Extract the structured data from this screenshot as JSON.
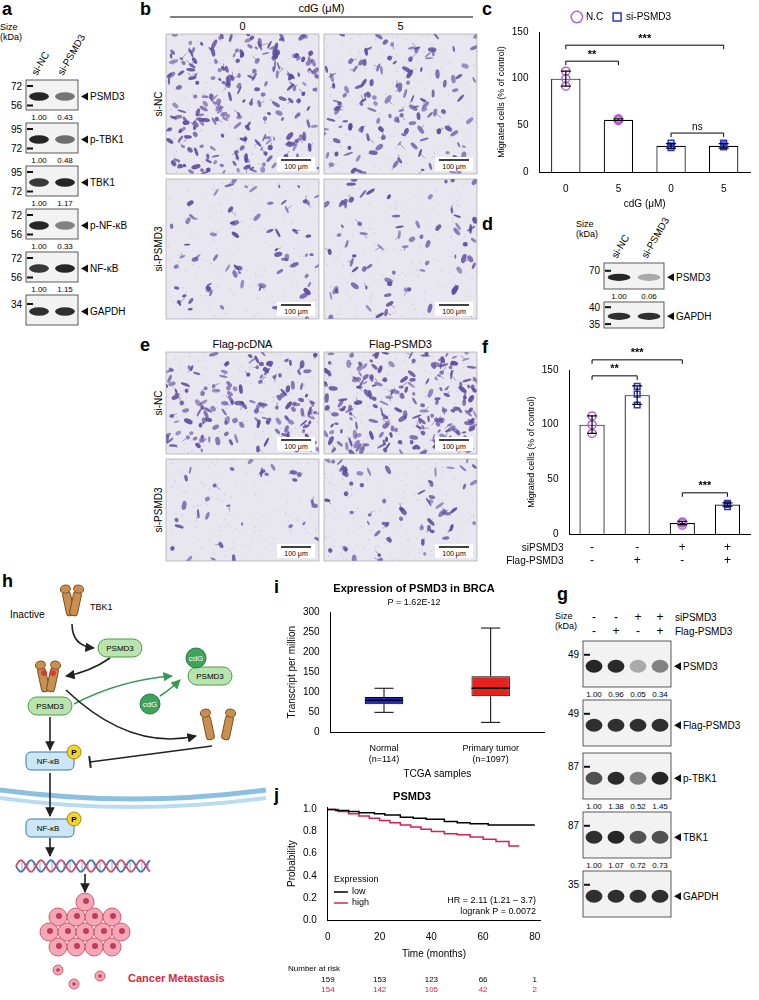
{
  "panels": {
    "a": {
      "letter": "a",
      "size_label": "Size (kDa)",
      "lanes": [
        "si-NC",
        "si-PSMD3"
      ],
      "rows": [
        {
          "name": "PSMD3",
          "markers": [
            72,
            56
          ],
          "quant": [
            "1.00",
            "0.43"
          ]
        },
        {
          "name": "p-TBK1",
          "markers": [
            95,
            72
          ],
          "quant": [
            "1.00",
            "0.48"
          ]
        },
        {
          "name": "TBK1",
          "markers": [
            95,
            72
          ],
          "quant": [
            "1.00",
            "1.17"
          ]
        },
        {
          "name": "p-NF-κB",
          "markers": [
            72,
            56
          ],
          "quant": [
            "1.00",
            "0.33"
          ]
        },
        {
          "name": "NF-κB",
          "markers": [
            72,
            56
          ],
          "quant": [
            "1.00",
            "1.15"
          ]
        },
        {
          "name": "GAPDH",
          "markers": [
            34
          ]
        }
      ]
    },
    "b": {
      "letter": "b",
      "title": "cdG (μM)",
      "columns": [
        "0",
        "5"
      ],
      "rows": [
        "si-NC",
        "si-PSMD3"
      ],
      "scale_bar": "100 μm"
    },
    "d": {
      "letter": "d",
      "size_label": "Size (kDa)",
      "lanes": [
        "si-NC",
        "si-PSMD3"
      ],
      "rows": [
        {
          "name": "PSMD3",
          "markers": [
            70
          ],
          "quant": [
            "1.00",
            "0.06"
          ]
        },
        {
          "name": "GAPDH",
          "markers": [
            40,
            35
          ]
        }
      ]
    },
    "e": {
      "letter": "e",
      "columns": [
        "Flag-pcDNA",
        "Flag-PSMD3"
      ],
      "rows": [
        "si-NC",
        "si-PSMD3"
      ],
      "scale_bar": "100 μm"
    },
    "g": {
      "letter": "g",
      "size_label": "Size (kDa)",
      "conditions": [
        {
          "name": "siPSMD3",
          "marks": [
            "-",
            "-",
            "+",
            "+"
          ]
        },
        {
          "name": "Flag-PSMD3",
          "marks": [
            "-",
            "+",
            "-",
            "+"
          ]
        }
      ],
      "rows": [
        {
          "name": "PSMD3",
          "markers": [
            49
          ],
          "quant": [
            "1.00",
            "0.96",
            "0.05",
            "0.34"
          ]
        },
        {
          "name": "Flag-PSMD3",
          "markers": [
            49
          ]
        },
        {
          "name": "p-TBK1",
          "markers": [
            87
          ],
          "quant": [
            "1.00",
            "1.38",
            "0.52",
            "1.45"
          ]
        },
        {
          "name": "TBK1",
          "markers": [
            87
          ],
          "quant": [
            "1.00",
            "1.07",
            "0.72",
            "0.73"
          ]
        },
        {
          "name": "GAPDH",
          "markers": [
            35
          ]
        }
      ]
    },
    "h": {
      "letter": "h",
      "texts": {
        "inactive": "Inactive",
        "tbk1": "TBK1",
        "psmd3": "PSMD3",
        "cdg": "cdG",
        "nfkb": "NF-κB",
        "p": "P",
        "outcome": "Cancer Metastasis"
      }
    }
  },
  "chart_data": [
    {
      "panel": "c",
      "type": "bar",
      "categories": [
        "0",
        "5",
        "0",
        "5"
      ],
      "x_label": "cdG (μM)",
      "y_label": "Migrated cells (% of control)",
      "ylim": [
        0,
        150
      ],
      "yticks": [
        0,
        50,
        100,
        150
      ],
      "grid": false,
      "legend": "top",
      "series": [
        {
          "name": "N.C",
          "color": "#b45fd6",
          "marker": "circle",
          "values": [
            100,
            56,
            null,
            null
          ],
          "errors": [
            8,
            1,
            null,
            null
          ],
          "points": [
            [
              108,
              100,
              92
            ],
            [
              57,
              56,
              55
            ],
            null,
            null
          ]
        },
        {
          "name": "si-PSMD3",
          "color": "#2a36c8",
          "marker": "square",
          "values": [
            null,
            null,
            28,
            28
          ],
          "errors": [
            null,
            null,
            2.5,
            2.5
          ],
          "points": [
            null,
            null,
            [
              31,
              26,
              28
            ],
            [
              31,
              27,
              29
            ]
          ]
        }
      ],
      "significance": [
        {
          "from": 0,
          "to": 1,
          "label": "**"
        },
        {
          "from": 0,
          "to": 3,
          "label": "***"
        },
        {
          "from": 2,
          "to": 3,
          "label": "ns"
        }
      ]
    },
    {
      "panel": "f",
      "type": "bar",
      "categories": [
        null,
        null,
        null,
        null
      ],
      "y_label": "Migrated cells (% of control)",
      "ylim": [
        0,
        150
      ],
      "yticks": [
        0,
        50,
        100,
        150
      ],
      "grid": false,
      "tick_labels": "y",
      "conditions": [
        {
          "name": "siPSMD3",
          "marks": [
            "-",
            "-",
            "+",
            "+"
          ]
        },
        {
          "name": "Flag-PSMD3",
          "marks": [
            "-",
            "+",
            "-",
            "+"
          ]
        }
      ],
      "series": [
        {
          "color": "#b45fd6",
          "marker": "circle",
          "values": [
            100,
            null,
            10,
            null
          ],
          "errors": [
            8,
            null,
            1.5,
            null
          ],
          "points": [
            [
              108,
              100,
              92
            ],
            null,
            [
              8,
              11,
              10
            ],
            null
          ]
        },
        {
          "color": "#2a36c8",
          "marker": "square",
          "values": [
            null,
            127,
            null,
            27
          ],
          "errors": [
            null,
            8.5,
            null,
            1.5
          ],
          "points": [
            null,
            [
              135,
              118,
              128
            ],
            null,
            [
              25,
              28,
              27
            ]
          ]
        }
      ],
      "significance": [
        {
          "from": 0,
          "to": 1,
          "label": "**"
        },
        {
          "from": 0,
          "to": 2,
          "label": "***"
        },
        {
          "from": 2,
          "to": 3,
          "label": "***"
        }
      ]
    },
    {
      "panel": "i",
      "type": "box",
      "title": "Expression of PSMD3 in BRCA",
      "annotations": [
        "P = 1.62E-12"
      ],
      "categories": [
        "Normal (n=114)",
        "Primary tumor (n=1097)"
      ],
      "colors": [
        "#2424c8",
        "#e8231e"
      ],
      "boxes": [
        {
          "min": 50,
          "q1": 70,
          "median": 80,
          "q3": 88,
          "max": 110
        },
        {
          "min": 25,
          "q1": 90,
          "median": 110,
          "q3": 140,
          "max": 260
        }
      ],
      "x_label": "TCGA samples",
      "y_label": "Transcript per million",
      "ylim": [
        0,
        300
      ],
      "yticks": [
        0,
        50,
        100,
        150,
        200,
        250,
        300
      ],
      "grid": false
    },
    {
      "panel": "j",
      "type": "line",
      "title": "PSMD3",
      "x_label": "Time (months)",
      "y_label": "Probability",
      "xlim": [
        0,
        82
      ],
      "xticks": [
        0,
        20,
        40,
        60,
        80
      ],
      "ylim": [
        0,
        1.02
      ],
      "yticks": [
        {
          "value": 0,
          "label": "0.0"
        },
        0.2,
        0.4,
        0.6,
        0.8,
        {
          "value": 1,
          "label": "1.0"
        }
      ],
      "grid": false,
      "legend": "lower left",
      "legend_title": "Expression",
      "annotations": [
        "HR = 2.11 (1.21 – 3.7)",
        "logrank P = 0.0072"
      ],
      "at_risk_title": "Number at risk",
      "at_risk_x": [
        0,
        20,
        40,
        60,
        80
      ],
      "series": [
        {
          "name": "low",
          "color": "#000000",
          "line_style": "step",
          "x": [
            0,
            3,
            8,
            12,
            18,
            22,
            28,
            33,
            38,
            45,
            50,
            55,
            62,
            80
          ],
          "values": [
            1,
            0.99,
            0.98,
            0.97,
            0.96,
            0.95,
            0.93,
            0.92,
            0.91,
            0.89,
            0.88,
            0.87,
            0.86,
            0.86
          ],
          "at_risk": [
            159,
            153,
            123,
            66,
            1
          ]
        },
        {
          "name": "high",
          "color": "#d6204f",
          "line_style": "step",
          "x": [
            0,
            4,
            8,
            12,
            16,
            20,
            24,
            28,
            32,
            36,
            40,
            45,
            50,
            55,
            60,
            65,
            70,
            74
          ],
          "values": [
            1,
            0.98,
            0.96,
            0.94,
            0.92,
            0.9,
            0.88,
            0.86,
            0.84,
            0.82,
            0.8,
            0.78,
            0.77,
            0.75,
            0.73,
            0.71,
            0.67,
            0.67
          ],
          "at_risk": [
            154,
            142,
            105,
            42,
            2
          ]
        }
      ]
    }
  ]
}
